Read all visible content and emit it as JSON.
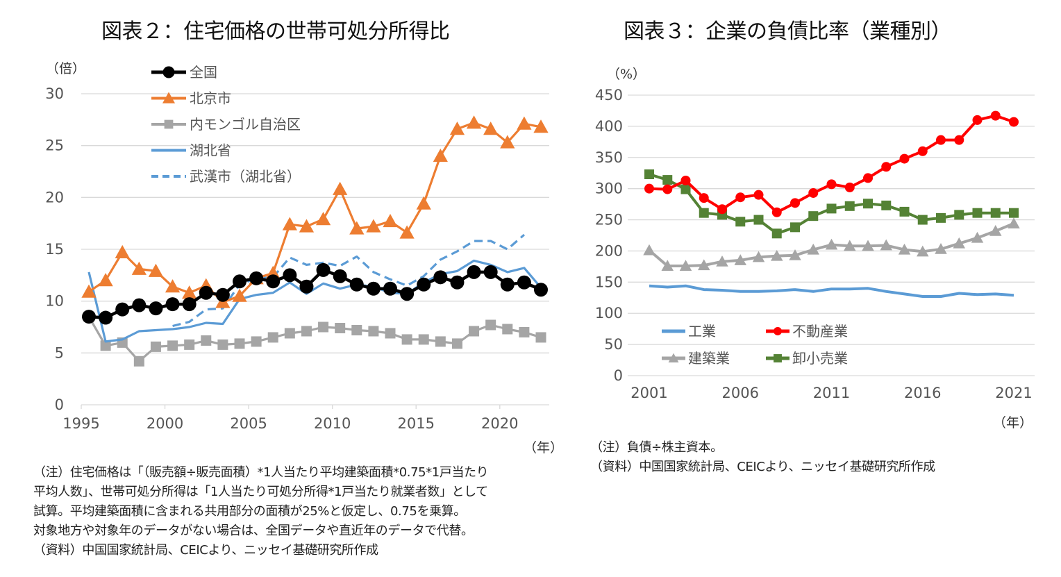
{
  "left": {
    "title": "図表２：住宅価格の世帯可処分所得比",
    "unit_label": "（倍）",
    "x_unit_label": "（年）",
    "notes": [
      "（注）住宅価格は「（販売額÷販売面積）*1人当たり平均建築面積*0.75*1戸当たり",
      "平均人数」、世帯可処分所得は「1人当たり可処分所得*1戸当たり就業者数」として",
      "試算。平均建築面積に含まれる共用部分の面積が25%と仮定し、0.75を乗算。",
      "対象地方や対象年のデータがない場合は、全国データや直近年のデータで代替。",
      "（資料）中国国家統計局、CEICより、ニッセイ基礎研究所作成"
    ]
  },
  "right": {
    "title": "図表３：企業の負債比率（業種別）",
    "unit_label": "（%）",
    "x_unit_label": "（年）",
    "notes": [
      "（注）負債÷株主資本。",
      "（資料）中国国家統計局、CEICより、ニッセイ基礎研究所作成"
    ]
  },
  "chart_data": [
    {
      "type": "line",
      "title": "図表２：住宅価格の世帯可処分所得比",
      "xlabel": "（年）",
      "ylabel": "（倍）",
      "ylim": [
        0,
        30
      ],
      "yticks": [
        0,
        5,
        10,
        15,
        20,
        25,
        30
      ],
      "xlim": [
        1995,
        2022
      ],
      "xticks": [
        1995,
        2000,
        2005,
        2010,
        2015,
        2020
      ],
      "grid": true,
      "legend_position": "top-left",
      "x": [
        1995,
        1996,
        1997,
        1998,
        1999,
        2000,
        2001,
        2002,
        2003,
        2004,
        2005,
        2006,
        2007,
        2008,
        2009,
        2010,
        2011,
        2012,
        2013,
        2014,
        2015,
        2016,
        2017,
        2018,
        2019,
        2020,
        2021,
        2022
      ],
      "series": [
        {
          "name": "全国",
          "color": "#000000",
          "marker": "circle",
          "dash": false,
          "values": [
            8.5,
            8.4,
            9.2,
            9.6,
            9.3,
            9.7,
            9.7,
            10.8,
            10.6,
            11.9,
            12.2,
            11.9,
            12.5,
            11.4,
            13.0,
            12.4,
            11.6,
            11.2,
            11.2,
            10.7,
            11.6,
            12.3,
            11.8,
            12.8,
            12.8,
            11.6,
            11.8,
            11.1
          ]
        },
        {
          "name": "北京市",
          "color": "#ED7D31",
          "marker": "triangle",
          "dash": false,
          "values": [
            10.9,
            12.0,
            14.7,
            13.1,
            12.9,
            11.4,
            10.8,
            11.5,
            9.9,
            10.5,
            12.2,
            12.7,
            17.4,
            17.2,
            17.9,
            20.8,
            17.0,
            17.2,
            17.7,
            16.6,
            19.4,
            24.0,
            26.6,
            27.2,
            26.6,
            25.3,
            27.1,
            26.8
          ]
        },
        {
          "name": "内モンゴル自治区",
          "color": "#A5A5A5",
          "marker": "square",
          "dash": false,
          "values": [
            8.5,
            5.7,
            6.0,
            4.2,
            5.6,
            5.7,
            5.8,
            6.2,
            5.8,
            5.9,
            6.1,
            6.5,
            6.9,
            7.1,
            7.5,
            7.4,
            7.2,
            7.1,
            6.9,
            6.3,
            6.3,
            6.1,
            5.9,
            7.1,
            7.7,
            7.3,
            7.0,
            6.5
          ]
        },
        {
          "name": "湖北省",
          "color": "#5B9BD5",
          "marker": "none",
          "dash": false,
          "values": [
            12.8,
            6.1,
            6.3,
            7.1,
            7.2,
            7.3,
            7.5,
            7.9,
            7.8,
            10.2,
            10.6,
            10.8,
            11.8,
            10.7,
            11.7,
            11.2,
            11.6,
            11.4,
            10.8,
            10.7,
            11.8,
            12.6,
            12.9,
            13.9,
            13.5,
            12.8,
            13.2,
            11.3
          ]
        },
        {
          "name": "武漢市（湖北省）",
          "color": "#5B9BD5",
          "marker": "none",
          "dash": true,
          "values": [
            null,
            null,
            null,
            null,
            null,
            7.6,
            8.0,
            9.2,
            9.3,
            11.6,
            12.2,
            12.3,
            14.2,
            13.5,
            13.7,
            13.4,
            14.3,
            12.8,
            12.1,
            11.5,
            12.4,
            14.0,
            14.8,
            15.8,
            15.8,
            15.0,
            16.4,
            null
          ]
        }
      ]
    },
    {
      "type": "line",
      "title": "図表３：企業の負債比率（業種別）",
      "xlabel": "（年）",
      "ylabel": "（%）",
      "ylim": [
        0,
        450
      ],
      "yticks": [
        0,
        50,
        100,
        150,
        200,
        250,
        300,
        350,
        400,
        450
      ],
      "xlim": [
        2001,
        2021
      ],
      "xticks": [
        2001,
        2006,
        2011,
        2016,
        2021
      ],
      "grid": true,
      "legend_position": "bottom-left",
      "x": [
        2001,
        2002,
        2003,
        2004,
        2005,
        2006,
        2007,
        2008,
        2009,
        2010,
        2011,
        2012,
        2013,
        2014,
        2015,
        2016,
        2017,
        2018,
        2019,
        2020,
        2021
      ],
      "series": [
        {
          "name": "工業",
          "color": "#5B9BD5",
          "marker": "none",
          "values": [
            144,
            142,
            144,
            138,
            137,
            135,
            135,
            136,
            138,
            135,
            139,
            139,
            140,
            135,
            131,
            127,
            127,
            132,
            130,
            131,
            129
          ]
        },
        {
          "name": "不動産業",
          "color": "#FF0000",
          "marker": "circle",
          "values": [
            300,
            299,
            313,
            285,
            267,
            286,
            290,
            262,
            277,
            293,
            307,
            302,
            317,
            335,
            348,
            360,
            378,
            378,
            410,
            417,
            407
          ]
        },
        {
          "name": "建築業",
          "color": "#A5A5A5",
          "marker": "triangle",
          "values": [
            201,
            176,
            176,
            177,
            183,
            185,
            190,
            192,
            193,
            202,
            210,
            208,
            208,
            209,
            202,
            199,
            203,
            212,
            221,
            232,
            244
          ]
        },
        {
          "name": "卸小売業",
          "color": "#548235",
          "marker": "square",
          "values": [
            323,
            314,
            299,
            261,
            258,
            247,
            250,
            228,
            238,
            256,
            268,
            272,
            276,
            273,
            263,
            250,
            253,
            258,
            261,
            261,
            261
          ]
        }
      ]
    }
  ]
}
